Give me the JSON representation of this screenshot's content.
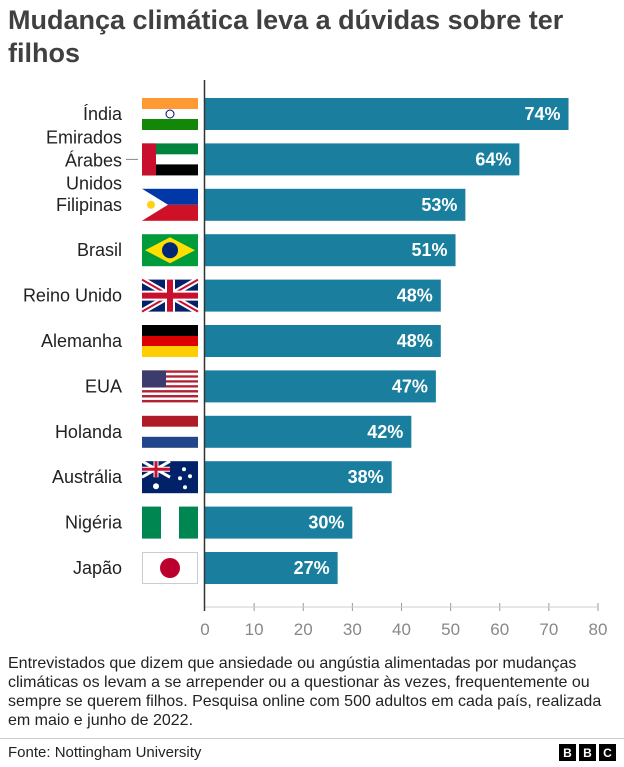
{
  "chart_data": {
    "type": "bar",
    "title": "Mudança climática leva a dúvidas sobre ter filhos",
    "categories": [
      "Índia",
      "Emirados Árabes Unidos",
      "Filipinas",
      "Brasil",
      "Reino Unido",
      "Alemanha",
      "EUA",
      "Holanda",
      "Austrália",
      "Nigéria",
      "Japão"
    ],
    "values": [
      74,
      64,
      53,
      51,
      48,
      48,
      47,
      42,
      38,
      30,
      27
    ],
    "value_labels": [
      "74%",
      "64%",
      "53%",
      "51%",
      "48%",
      "48%",
      "47%",
      "42%",
      "38%",
      "30%",
      "27%"
    ],
    "flags": [
      "india",
      "uae",
      "philippines",
      "brazil",
      "uk",
      "germany",
      "usa",
      "netherlands",
      "australia",
      "nigeria",
      "japan"
    ],
    "xlim": [
      0,
      80
    ],
    "xticks": [
      "0",
      "10",
      "20",
      "30",
      "40",
      "50",
      "60",
      "70",
      "80"
    ],
    "bar_color": "#1a7f9e",
    "xlabel": "",
    "ylabel": ""
  },
  "note": "Entrevistados que dizem que ansiedade ou angústia alimentadas por mudanças climáticas os levam a se arrepender ou a questionar às vezes, frequentemente ou sempre se querem filhos. Pesquisa online com 500 adultos em cada país, realizada em maio e junho de 2022.",
  "source": "Fonte: Nottingham University",
  "logo": [
    "B",
    "B",
    "C"
  ]
}
